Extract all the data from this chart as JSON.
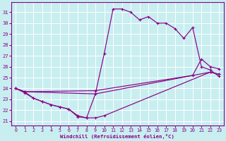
{
  "xlabel": "Windchill (Refroidissement éolien,°C)",
  "xlim": [
    -0.5,
    23.5
  ],
  "ylim": [
    20.6,
    31.9
  ],
  "yticks": [
    21,
    22,
    23,
    24,
    25,
    26,
    27,
    28,
    29,
    30,
    31
  ],
  "xticks": [
    0,
    1,
    2,
    3,
    4,
    5,
    6,
    7,
    8,
    9,
    10,
    11,
    12,
    13,
    14,
    15,
    16,
    17,
    18,
    19,
    20,
    21,
    22,
    23
  ],
  "bg_color": "#c8eef0",
  "line_color": "#880088",
  "grid_color": "#ffffff",
  "curves": [
    {
      "x": [
        0,
        1,
        9,
        22,
        23
      ],
      "y": [
        24.0,
        23.7,
        23.5,
        25.5,
        25.3
      ]
    },
    {
      "x": [
        0,
        1,
        9,
        20,
        21,
        22,
        23
      ],
      "y": [
        24.0,
        23.7,
        23.8,
        25.2,
        26.7,
        26.0,
        25.8
      ]
    },
    {
      "x": [
        0,
        1,
        2,
        3,
        4,
        5,
        6,
        7,
        8,
        9,
        10,
        22,
        23
      ],
      "y": [
        24.0,
        23.6,
        23.1,
        22.8,
        22.5,
        22.3,
        22.1,
        21.4,
        21.3,
        21.3,
        21.5,
        25.5,
        25.3
      ]
    },
    {
      "x": [
        0,
        1,
        2,
        3,
        4,
        5,
        6,
        7,
        8,
        9,
        10,
        11,
        12,
        13,
        14,
        15,
        16,
        17,
        18,
        19,
        20,
        21,
        22,
        23
      ],
      "y": [
        24.0,
        23.7,
        23.1,
        22.8,
        22.5,
        22.3,
        22.1,
        21.5,
        21.3,
        23.5,
        27.2,
        31.3,
        31.3,
        31.0,
        30.3,
        30.6,
        30.0,
        30.0,
        29.5,
        28.6,
        29.6,
        26.0,
        25.7,
        25.1
      ]
    }
  ]
}
